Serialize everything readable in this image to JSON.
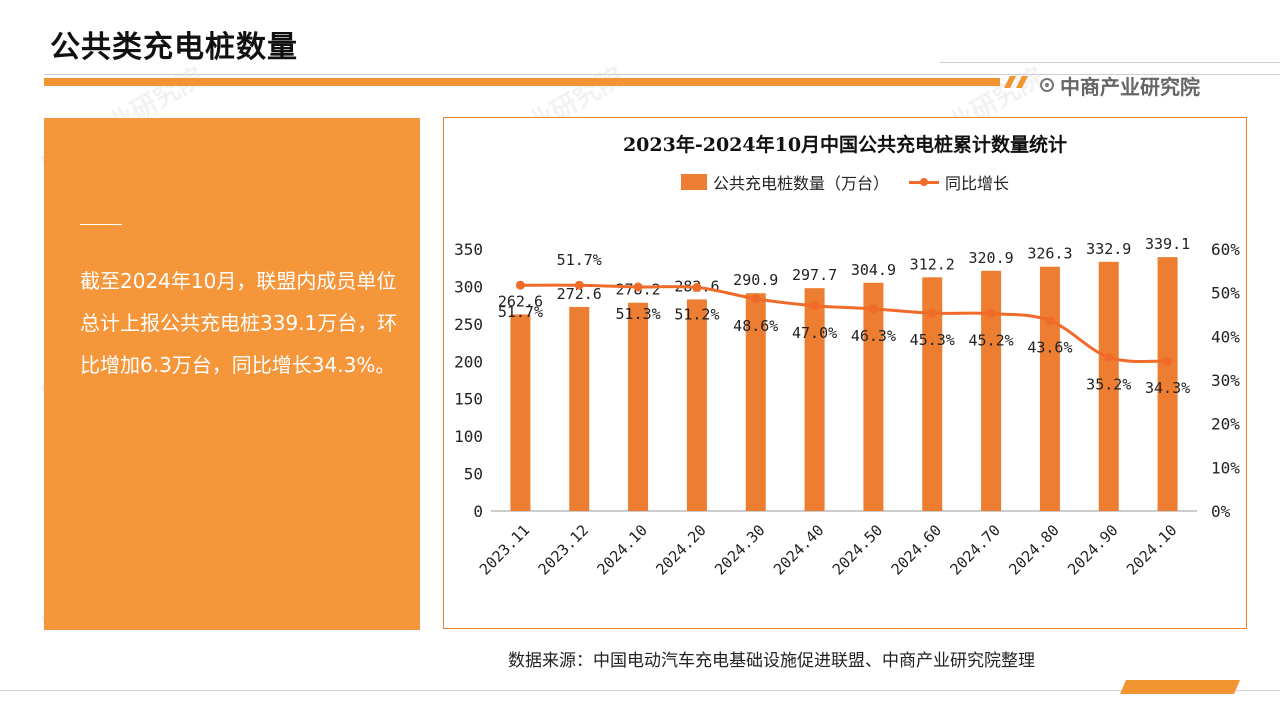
{
  "page": {
    "title": "公共类充电桩数量",
    "brand": "中商产业研究院"
  },
  "panel": {
    "text": "截至2024年10月，联盟内成员单位总计上报公共充电桩339.1万台，环比增加6.3万台，同比增长34.3%。"
  },
  "source": "数据来源：中国电动汽车充电基础设施促进联盟、中商产业研究院整理",
  "watermark": "中商产业研究院",
  "colors": {
    "accent": "#f39433",
    "bar": "#ed7d31",
    "line": "#f06a2a",
    "panel": "#f6963b"
  },
  "chart_data": {
    "type": "bar",
    "title": "2023年-2024年10月中国公共充电桩累计数量统计",
    "categories": [
      "2023.11",
      "2023.12",
      "2024.10",
      "2024.20",
      "2024.30",
      "2024.40",
      "2024.50",
      "2024.60",
      "2024.70",
      "2024.80",
      "2024.90",
      "2024.10"
    ],
    "series": [
      {
        "name": "公共充电桩数量（万台）",
        "type": "bar",
        "axis": "left",
        "values": [
          262.6,
          272.6,
          278.2,
          282.6,
          290.9,
          297.7,
          304.9,
          312.2,
          320.9,
          326.3,
          332.9,
          339.1
        ]
      },
      {
        "name": "同比增长",
        "type": "line",
        "axis": "right",
        "values": [
          51.7,
          51.7,
          51.3,
          51.2,
          48.6,
          47.0,
          46.3,
          45.3,
          45.2,
          43.6,
          35.2,
          34.3
        ],
        "labels": [
          "51.7%",
          "51.7%",
          "51.3%",
          "51.2%",
          "48.6%",
          "47.0%",
          "46.3%",
          "45.3%",
          "45.2%",
          "43.6%",
          "35.2%",
          "34.3%"
        ]
      }
    ],
    "y_left": {
      "min": 0,
      "max": 350,
      "ticks": [
        0,
        50,
        100,
        150,
        200,
        250,
        300,
        350
      ]
    },
    "y_right": {
      "min": 0,
      "max": 60,
      "ticks": [
        "0%",
        "10%",
        "20%",
        "30%",
        "40%",
        "50%",
        "60%"
      ]
    },
    "legend": "top"
  }
}
